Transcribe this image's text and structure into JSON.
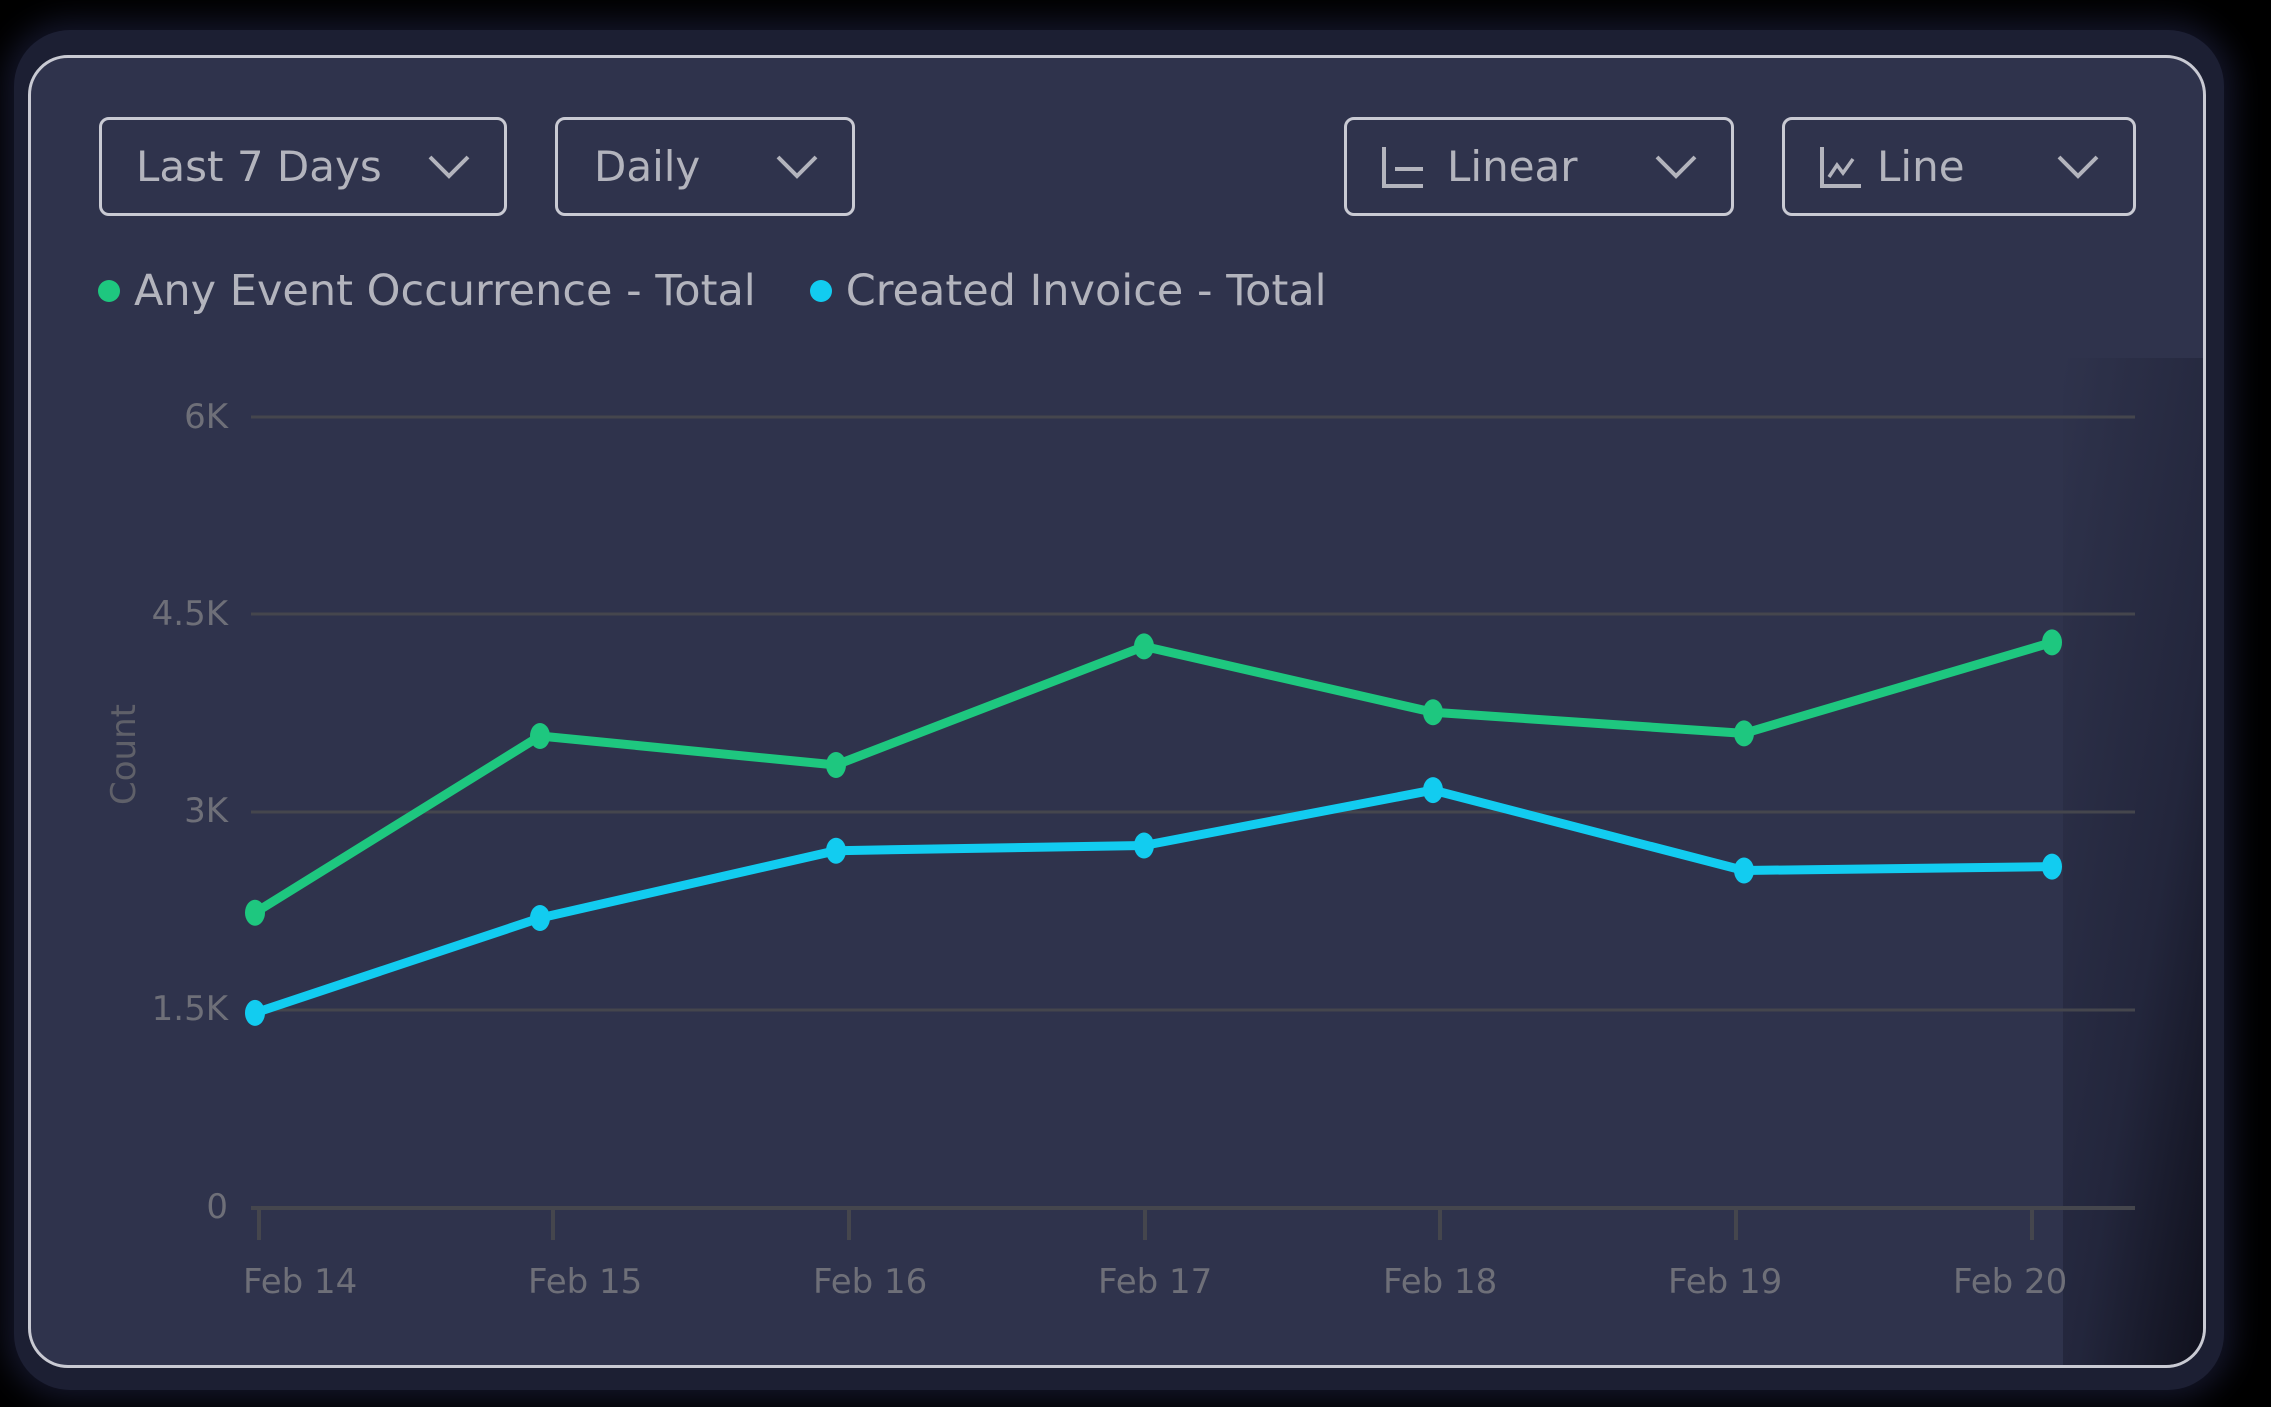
{
  "controls": {
    "range": {
      "label": "Last 7 Days"
    },
    "interval": {
      "label": "Daily"
    },
    "scale": {
      "label": "Linear",
      "icon": "axis-icon"
    },
    "chart_type": {
      "label": "Line",
      "icon": "line-chart-icon"
    }
  },
  "legend": [
    {
      "label": "Any Event Occurrence - Total",
      "color": "#1ec77f"
    },
    {
      "label": "Created Invoice - Total",
      "color": "#12ccf0"
    }
  ],
  "axes": {
    "y_title": "Count",
    "y_ticks": [
      "0",
      "1.5K",
      "3K",
      "4.5K",
      "6K"
    ],
    "x_ticks": [
      "Feb 14",
      "Feb 15",
      "Feb 16",
      "Feb 17",
      "Feb 18",
      "Feb 19",
      "Feb 20"
    ]
  },
  "chart_data": {
    "type": "line",
    "title": "",
    "xlabel": "",
    "ylabel": "Count",
    "ylim": [
      0,
      6000
    ],
    "grid": true,
    "legend_position": "top-left",
    "categories": [
      "Feb 14",
      "Feb 15",
      "Feb 16",
      "Feb 17",
      "Feb 18",
      "Feb 19",
      "Feb 20"
    ],
    "y_ticks": [
      0,
      1500,
      3000,
      4500,
      6000
    ],
    "y_tick_labels": [
      "0",
      "1.5K",
      "3K",
      "4.5K",
      "6K"
    ],
    "series": [
      {
        "name": "Any Event Occurrence - Total",
        "color": "#1ec77f",
        "values": [
          2240,
          3580,
          3360,
          4260,
          3760,
          3600,
          4290
        ]
      },
      {
        "name": "Created Invoice - Total",
        "color": "#12ccf0",
        "values": [
          1480,
          2200,
          2710,
          2750,
          3170,
          2560,
          2590
        ]
      }
    ]
  }
}
